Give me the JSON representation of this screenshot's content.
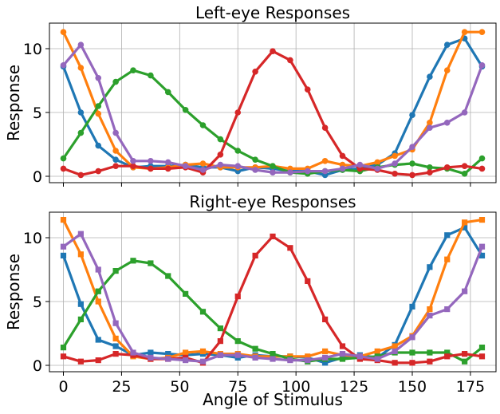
{
  "chart_data": [
    {
      "type": "line",
      "title": "Left-eye Responses",
      "xlabel": "",
      "ylabel": "Response",
      "xlim": [
        -6,
        186
      ],
      "ylim": [
        -0.5,
        12
      ],
      "xticks": [
        0,
        25,
        50,
        75,
        100,
        125,
        150,
        175
      ],
      "yticks": [
        0,
        5,
        10
      ],
      "grid": true,
      "marker": "circle",
      "x": [
        0,
        7.5,
        15,
        22.5,
        30,
        37.5,
        45,
        52.5,
        60,
        67.5,
        75,
        82.5,
        90,
        97.5,
        105,
        112.5,
        120,
        127.5,
        135,
        142.5,
        150,
        157.5,
        165,
        172.5,
        180
      ],
      "series": [
        {
          "color": "#1f77b4",
          "values": [
            8.6,
            5.0,
            2.4,
            1.3,
            0.7,
            0.8,
            0.8,
            0.9,
            0.7,
            0.7,
            0.4,
            0.7,
            0.6,
            0.4,
            0.4,
            0.1,
            0.5,
            0.6,
            0.9,
            1.8,
            4.8,
            7.8,
            10.3,
            10.8,
            8.6
          ]
        },
        {
          "color": "#ff7f0e",
          "values": [
            11.3,
            8.5,
            4.9,
            2.0,
            0.7,
            0.6,
            0.7,
            0.9,
            1.0,
            0.7,
            0.7,
            0.7,
            0.8,
            0.6,
            0.6,
            1.2,
            0.9,
            0.8,
            1.1,
            1.6,
            2.1,
            4.2,
            8.3,
            11.3,
            11.3
          ]
        },
        {
          "color": "#2ca02c",
          "values": [
            1.4,
            3.4,
            5.5,
            7.4,
            8.3,
            7.9,
            6.6,
            5.2,
            4.0,
            2.9,
            2.0,
            1.3,
            0.8,
            0.3,
            0.2,
            0.4,
            0.5,
            0.4,
            0.7,
            0.9,
            1.0,
            0.7,
            0.6,
            0.2,
            1.4
          ]
        },
        {
          "color": "#d62728",
          "values": [
            0.6,
            0.1,
            0.4,
            0.8,
            0.8,
            0.6,
            0.6,
            0.7,
            0.3,
            1.7,
            5.0,
            8.2,
            9.8,
            9.1,
            6.8,
            3.8,
            1.6,
            0.6,
            0.5,
            0.2,
            0.1,
            0.3,
            0.7,
            0.8,
            0.6
          ]
        },
        {
          "color": "#9467bd",
          "values": [
            8.7,
            10.3,
            7.7,
            3.4,
            1.2,
            1.2,
            1.1,
            0.8,
            0.5,
            0.9,
            0.8,
            0.5,
            0.3,
            0.3,
            0.4,
            0.4,
            0.6,
            0.9,
            0.6,
            1.0,
            2.3,
            3.8,
            4.2,
            5.0,
            8.7
          ]
        }
      ]
    },
    {
      "type": "line",
      "title": "Right-eye Responses",
      "xlabel": "Angle of Stimulus",
      "ylabel": "Response",
      "xlim": [
        -6,
        186
      ],
      "ylim": [
        -0.5,
        12
      ],
      "xticks": [
        0,
        25,
        50,
        75,
        100,
        125,
        150,
        175
      ],
      "yticks": [
        0,
        5,
        10
      ],
      "grid": true,
      "marker": "square",
      "x": [
        0,
        7.5,
        15,
        22.5,
        30,
        37.5,
        45,
        52.5,
        60,
        67.5,
        75,
        82.5,
        90,
        97.5,
        105,
        112.5,
        120,
        127.5,
        135,
        142.5,
        150,
        157.5,
        165,
        172.5,
        180
      ],
      "series": [
        {
          "color": "#1f77b4",
          "values": [
            8.6,
            4.8,
            2.0,
            1.5,
            0.8,
            1.0,
            0.9,
            0.8,
            0.9,
            0.8,
            0.6,
            0.8,
            0.7,
            0.7,
            0.6,
            0.2,
            0.6,
            0.8,
            0.6,
            1.6,
            4.6,
            7.7,
            10.2,
            10.8,
            8.6
          ]
        },
        {
          "color": "#ff7f0e",
          "values": [
            11.4,
            8.7,
            5.0,
            2.1,
            0.7,
            0.5,
            0.6,
            1.0,
            1.1,
            0.9,
            0.9,
            0.7,
            0.7,
            0.7,
            0.7,
            1.1,
            0.8,
            0.7,
            1.1,
            1.5,
            2.3,
            4.4,
            8.3,
            11.2,
            11.4
          ]
        },
        {
          "color": "#2ca02c",
          "values": [
            1.4,
            3.6,
            5.8,
            7.4,
            8.2,
            8.0,
            7.0,
            5.6,
            4.2,
            2.9,
            1.9,
            1.3,
            0.9,
            0.5,
            0.3,
            0.5,
            0.5,
            0.6,
            0.7,
            1.0,
            1.0,
            1.0,
            1.0,
            0.3,
            1.4
          ]
        },
        {
          "color": "#d62728",
          "values": [
            0.7,
            0.3,
            0.4,
            0.9,
            0.8,
            0.5,
            0.5,
            0.6,
            0.2,
            1.9,
            5.4,
            8.6,
            10.1,
            9.2,
            6.6,
            3.6,
            1.5,
            0.5,
            0.4,
            0.2,
            0.2,
            0.3,
            0.7,
            0.9,
            0.7
          ]
        },
        {
          "color": "#9467bd",
          "values": [
            9.3,
            10.3,
            7.5,
            3.3,
            1.0,
            0.6,
            0.5,
            0.4,
            0.3,
            0.8,
            0.8,
            0.6,
            0.5,
            0.4,
            0.4,
            0.6,
            0.9,
            0.7,
            0.5,
            1.1,
            2.2,
            3.9,
            4.4,
            5.8,
            9.3
          ]
        }
      ]
    }
  ]
}
